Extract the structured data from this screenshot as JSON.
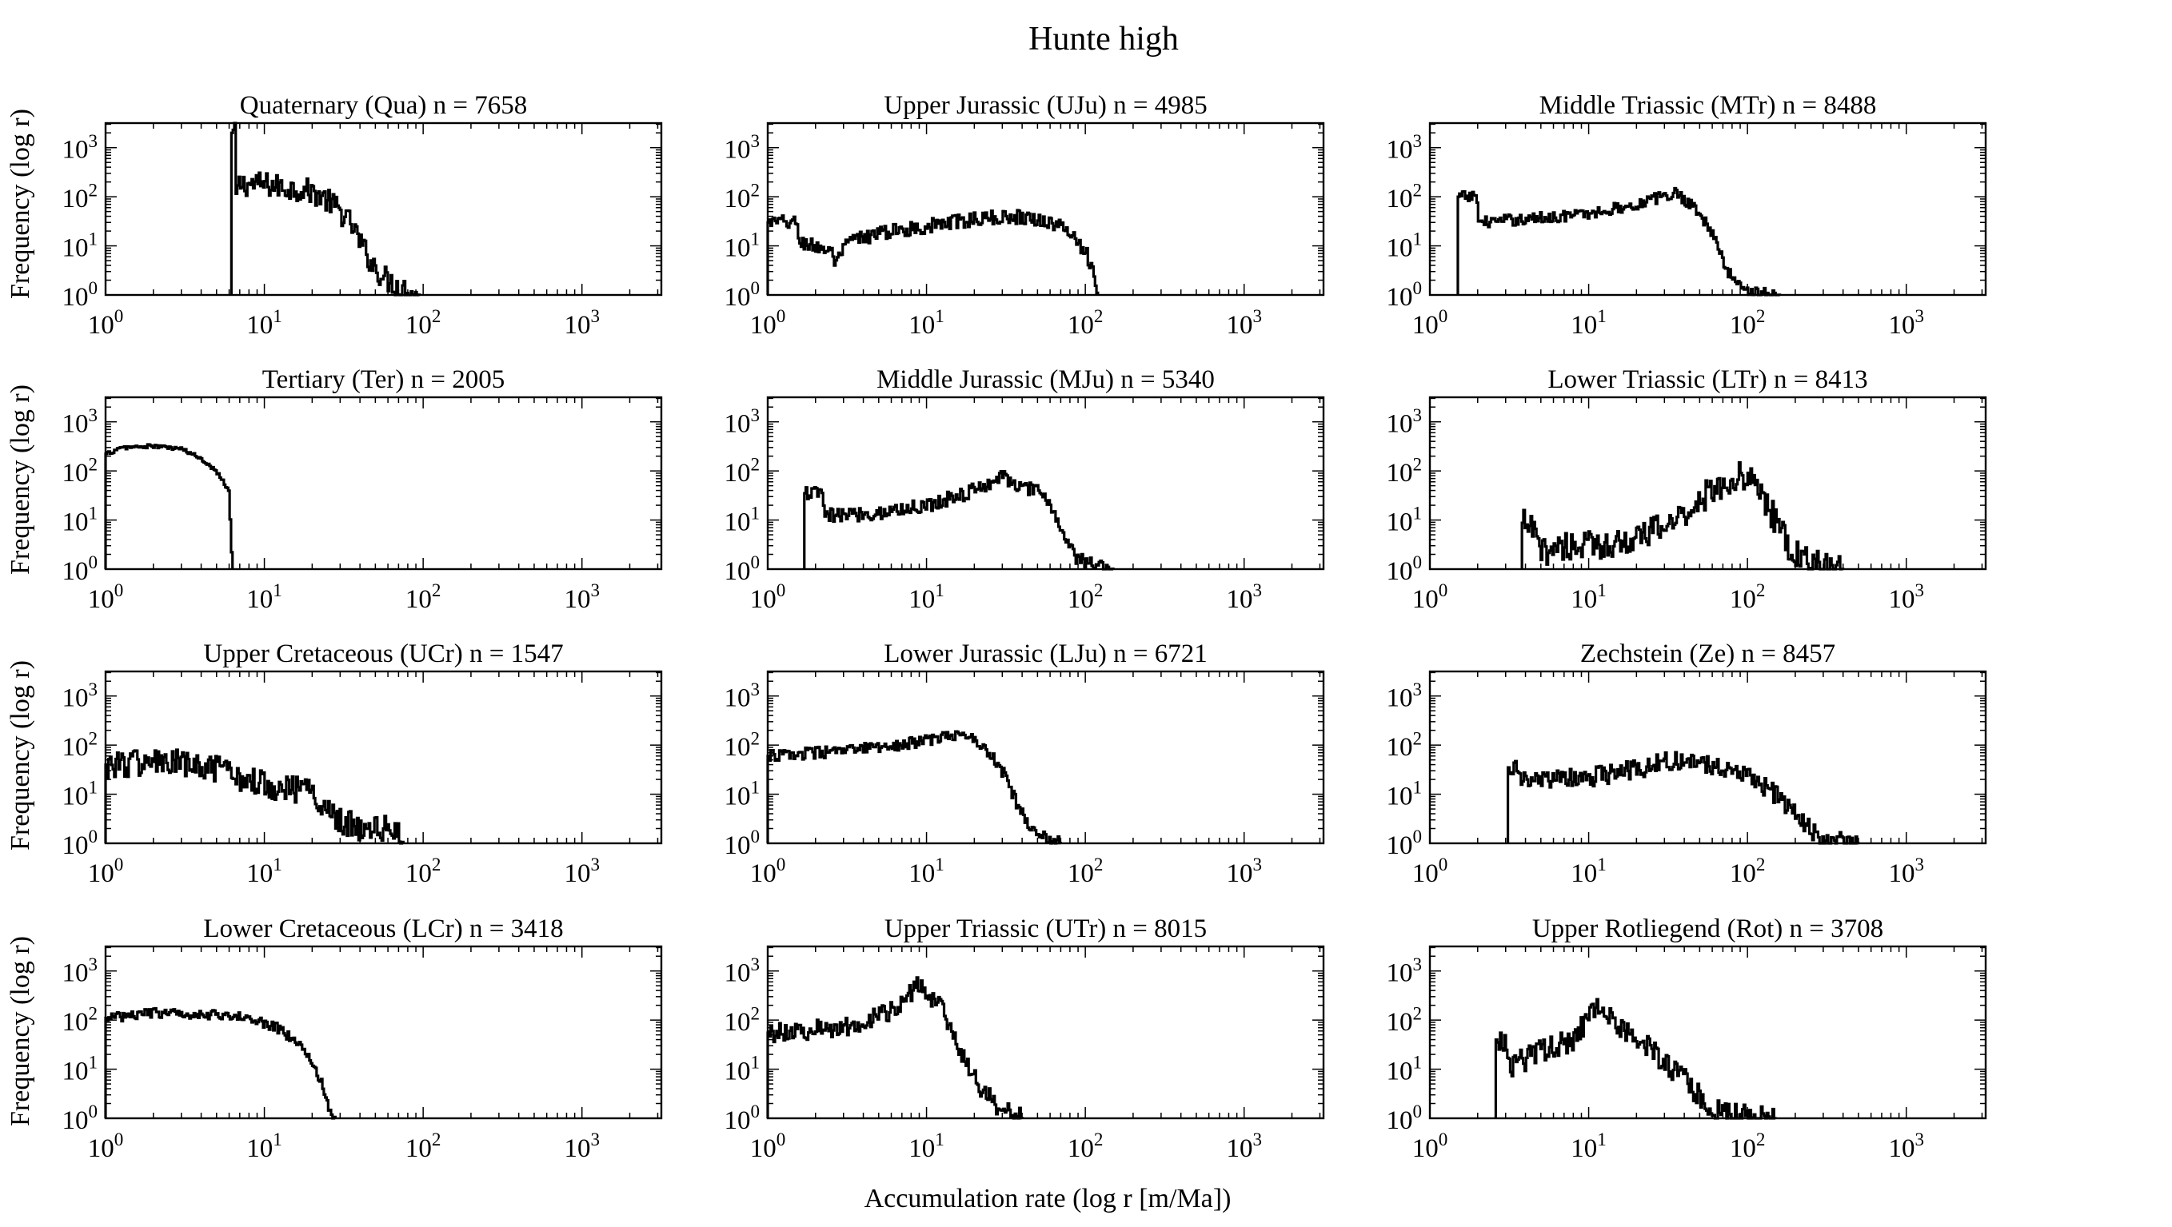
{
  "figure": {
    "title": "Hunte high",
    "xlabel": "Accumulation rate (log r [m/Ma])",
    "ylabel": "Frequency (log r)"
  },
  "style": {
    "line_color": "#000000",
    "background": "#ffffff"
  },
  "chart_data": [
    {
      "type": "histogram-step",
      "title": "Quaternary (Qua) n = 7658",
      "x_scale": "log",
      "y_scale": "log",
      "xlim": [
        1,
        3162
      ],
      "ylim": [
        1,
        3162
      ],
      "x_ticks": [
        "10^0",
        "10^1",
        "10^2",
        "10^3"
      ],
      "y_ticks": [
        "10^0",
        "10^1",
        "10^2",
        "10^3"
      ],
      "profile": [
        [
          6.2,
          1
        ],
        [
          6.2,
          2000
        ],
        [
          6.6,
          2000
        ],
        [
          6.6,
          100
        ],
        [
          7,
          180
        ],
        [
          10,
          180
        ],
        [
          14,
          150
        ],
        [
          18,
          140
        ],
        [
          22,
          110
        ],
        [
          27,
          70
        ],
        [
          32,
          40
        ],
        [
          36,
          25
        ],
        [
          40,
          12
        ],
        [
          45,
          6
        ],
        [
          52,
          3
        ],
        [
          60,
          2
        ],
        [
          70,
          1.5
        ],
        [
          80,
          1.2
        ],
        [
          95,
          1
        ]
      ],
      "noise": 0.25
    },
    {
      "type": "histogram-step",
      "title": "Upper Jurassic (UJu) n = 4985",
      "x_scale": "log",
      "y_scale": "log",
      "xlim": [
        1,
        3162
      ],
      "ylim": [
        1,
        3162
      ],
      "x_ticks": [
        "10^0",
        "10^1",
        "10^2",
        "10^3"
      ],
      "y_ticks": [
        "10^0",
        "10^1",
        "10^2",
        "10^3"
      ],
      "profile": [
        [
          1,
          30
        ],
        [
          1.5,
          30
        ],
        [
          1.6,
          12
        ],
        [
          2.5,
          8
        ],
        [
          2.7,
          4
        ],
        [
          3.2,
          12
        ],
        [
          5,
          18
        ],
        [
          10,
          25
        ],
        [
          20,
          35
        ],
        [
          40,
          40
        ],
        [
          60,
          30
        ],
        [
          80,
          20
        ],
        [
          90,
          12
        ],
        [
          100,
          8
        ],
        [
          110,
          4
        ],
        [
          115,
          1.5
        ],
        [
          120,
          1
        ]
      ],
      "noise": 0.15
    },
    {
      "type": "histogram-step",
      "title": "Middle Triassic (MTr) n = 8488",
      "x_scale": "log",
      "y_scale": "log",
      "xlim": [
        1,
        3162
      ],
      "ylim": [
        1,
        3162
      ],
      "x_ticks": [
        "10^0",
        "10^1",
        "10^2",
        "10^3"
      ],
      "y_ticks": [
        "10^0",
        "10^1",
        "10^2",
        "10^3"
      ],
      "profile": [
        [
          1.5,
          1
        ],
        [
          1.5,
          100
        ],
        [
          2,
          100
        ],
        [
          2,
          30
        ],
        [
          4,
          35
        ],
        [
          10,
          45
        ],
        [
          20,
          70
        ],
        [
          35,
          120
        ],
        [
          45,
          70
        ],
        [
          55,
          30
        ],
        [
          65,
          10
        ],
        [
          75,
          3
        ],
        [
          90,
          1.5
        ],
        [
          120,
          1.1
        ],
        [
          160,
          1
        ]
      ],
      "noise": 0.12
    },
    {
      "type": "histogram-step",
      "title": "Tertiary (Ter) n = 2005",
      "x_scale": "log",
      "y_scale": "log",
      "xlim": [
        1,
        3162
      ],
      "ylim": [
        1,
        3162
      ],
      "x_ticks": [
        "10^0",
        "10^1",
        "10^2",
        "10^3"
      ],
      "y_ticks": [
        "10^0",
        "10^1",
        "10^2",
        "10^3"
      ],
      "profile": [
        [
          1,
          220
        ],
        [
          1.3,
          300
        ],
        [
          2,
          320
        ],
        [
          3,
          280
        ],
        [
          4,
          180
        ],
        [
          5,
          100
        ],
        [
          6,
          40
        ],
        [
          6.3,
          1
        ]
      ],
      "noise": 0.04
    },
    {
      "type": "histogram-step",
      "title": "Middle Jurassic (MJu) n = 5340",
      "x_scale": "log",
      "y_scale": "log",
      "xlim": [
        1,
        3162
      ],
      "ylim": [
        1,
        3162
      ],
      "x_ticks": [
        "10^0",
        "10^1",
        "10^2",
        "10^3"
      ],
      "y_ticks": [
        "10^0",
        "10^1",
        "10^2",
        "10^3"
      ],
      "profile": [
        [
          1.7,
          1
        ],
        [
          1.7,
          35
        ],
        [
          2.2,
          35
        ],
        [
          2.3,
          12
        ],
        [
          5,
          14
        ],
        [
          10,
          20
        ],
        [
          20,
          40
        ],
        [
          30,
          80
        ],
        [
          40,
          45
        ],
        [
          55,
          35
        ],
        [
          65,
          12
        ],
        [
          75,
          4
        ],
        [
          90,
          1.5
        ],
        [
          140,
          1.1
        ],
        [
          150,
          1
        ]
      ],
      "noise": 0.15
    },
    {
      "type": "histogram-step",
      "title": "Lower Triassic (LTr) n = 8413",
      "x_scale": "log",
      "y_scale": "log",
      "xlim": [
        1,
        3162
      ],
      "ylim": [
        1,
        3162
      ],
      "x_ticks": [
        "10^0",
        "10^1",
        "10^2",
        "10^3"
      ],
      "y_ticks": [
        "10^0",
        "10^1",
        "10^2",
        "10^3"
      ],
      "profile": [
        [
          3.8,
          1
        ],
        [
          3.8,
          9
        ],
        [
          4.5,
          6
        ],
        [
          5,
          2
        ],
        [
          6,
          3
        ],
        [
          10,
          3
        ],
        [
          20,
          4
        ],
        [
          35,
          10
        ],
        [
          60,
          40
        ],
        [
          80,
          70
        ],
        [
          100,
          80
        ],
        [
          120,
          40
        ],
        [
          150,
          10
        ],
        [
          180,
          3
        ],
        [
          220,
          1.5
        ],
        [
          300,
          1.1
        ],
        [
          400,
          1
        ]
      ],
      "noise": 0.3
    },
    {
      "type": "histogram-step",
      "title": "Upper Cretaceous (UCr) n = 1547",
      "x_scale": "log",
      "y_scale": "log",
      "xlim": [
        1,
        3162
      ],
      "ylim": [
        1,
        3162
      ],
      "x_ticks": [
        "10^0",
        "10^1",
        "10^2",
        "10^3"
      ],
      "y_ticks": [
        "10^0",
        "10^1",
        "10^2",
        "10^3"
      ],
      "profile": [
        [
          1,
          40
        ],
        [
          2,
          45
        ],
        [
          3,
          40
        ],
        [
          5,
          30
        ],
        [
          8,
          20
        ],
        [
          12,
          15
        ],
        [
          18,
          12
        ],
        [
          25,
          6
        ],
        [
          30,
          3
        ],
        [
          40,
          2
        ],
        [
          55,
          2
        ],
        [
          70,
          1.5
        ],
        [
          75,
          1
        ]
      ],
      "noise": 0.3
    },
    {
      "type": "histogram-step",
      "title": "Lower Jurassic (LJu) n = 6721",
      "x_scale": "log",
      "y_scale": "log",
      "xlim": [
        1,
        3162
      ],
      "ylim": [
        1,
        3162
      ],
      "x_ticks": [
        "10^0",
        "10^1",
        "10^2",
        "10^3"
      ],
      "y_ticks": [
        "10^0",
        "10^1",
        "10^2",
        "10^3"
      ],
      "profile": [
        [
          1,
          60
        ],
        [
          3,
          75
        ],
        [
          8,
          110
        ],
        [
          15,
          160
        ],
        [
          20,
          140
        ],
        [
          25,
          70
        ],
        [
          30,
          30
        ],
        [
          35,
          10
        ],
        [
          40,
          4
        ],
        [
          50,
          1.5
        ],
        [
          60,
          1.2
        ],
        [
          70,
          1
        ]
      ],
      "noise": 0.12
    },
    {
      "type": "histogram-step",
      "title": "Zechstein (Ze) n = 8457",
      "x_scale": "log",
      "y_scale": "log",
      "xlim": [
        1,
        3162
      ],
      "ylim": [
        1,
        3162
      ],
      "x_ticks": [
        "10^0",
        "10^1",
        "10^2",
        "10^3"
      ],
      "y_ticks": [
        "10^0",
        "10^1",
        "10^2",
        "10^3"
      ],
      "profile": [
        [
          3.1,
          1
        ],
        [
          3.1,
          35
        ],
        [
          3.6,
          35
        ],
        [
          3.7,
          18
        ],
        [
          10,
          22
        ],
        [
          20,
          32
        ],
        [
          35,
          50
        ],
        [
          60,
          40
        ],
        [
          100,
          25
        ],
        [
          150,
          10
        ],
        [
          200,
          4
        ],
        [
          250,
          2
        ],
        [
          300,
          1.2
        ],
        [
          400,
          1.05
        ],
        [
          500,
          1
        ]
      ],
      "noise": 0.2
    },
    {
      "type": "histogram-step",
      "title": "Lower Cretaceous (LCr) n = 3418",
      "x_scale": "log",
      "y_scale": "log",
      "xlim": [
        1,
        3162
      ],
      "ylim": [
        1,
        3162
      ],
      "x_ticks": [
        "10^0",
        "10^1",
        "10^2",
        "10^3"
      ],
      "y_ticks": [
        "10^0",
        "10^1",
        "10^2",
        "10^3"
      ],
      "profile": [
        [
          1,
          110
        ],
        [
          2,
          140
        ],
        [
          5,
          130
        ],
        [
          8,
          110
        ],
        [
          12,
          70
        ],
        [
          16,
          35
        ],
        [
          20,
          15
        ],
        [
          23,
          5
        ],
        [
          25,
          2
        ],
        [
          28,
          1
        ]
      ],
      "noise": 0.1
    },
    {
      "type": "histogram-step",
      "title": "Upper Triassic (UTr) n = 8015",
      "x_scale": "log",
      "y_scale": "log",
      "xlim": [
        1,
        3162
      ],
      "ylim": [
        1,
        3162
      ],
      "x_ticks": [
        "10^0",
        "10^1",
        "10^2",
        "10^3"
      ],
      "y_ticks": [
        "10^0",
        "10^1",
        "10^2",
        "10^3"
      ],
      "profile": [
        [
          1,
          55
        ],
        [
          3,
          70
        ],
        [
          6,
          150
        ],
        [
          9,
          550
        ],
        [
          12,
          200
        ],
        [
          15,
          50
        ],
        [
          18,
          12
        ],
        [
          22,
          4
        ],
        [
          28,
          1.8
        ],
        [
          35,
          1.2
        ],
        [
          40,
          1
        ]
      ],
      "noise": 0.2
    },
    {
      "type": "histogram-step",
      "title": "Upper Rotliegend (Rot) n = 3708",
      "x_scale": "log",
      "y_scale": "log",
      "xlim": [
        1,
        3162
      ],
      "ylim": [
        1,
        3162
      ],
      "x_ticks": [
        "10^0",
        "10^1",
        "10^2",
        "10^3"
      ],
      "y_ticks": [
        "10^0",
        "10^1",
        "10^2",
        "10^3"
      ],
      "profile": [
        [
          2.6,
          1
        ],
        [
          2.6,
          40
        ],
        [
          3,
          40
        ],
        [
          3.1,
          10
        ],
        [
          5,
          25
        ],
        [
          8,
          40
        ],
        [
          12,
          250
        ],
        [
          15,
          80
        ],
        [
          25,
          25
        ],
        [
          40,
          6
        ],
        [
          55,
          2
        ],
        [
          70,
          1.2
        ],
        [
          100,
          1.05
        ],
        [
          150,
          1
        ]
      ],
      "noise": 0.25
    }
  ]
}
